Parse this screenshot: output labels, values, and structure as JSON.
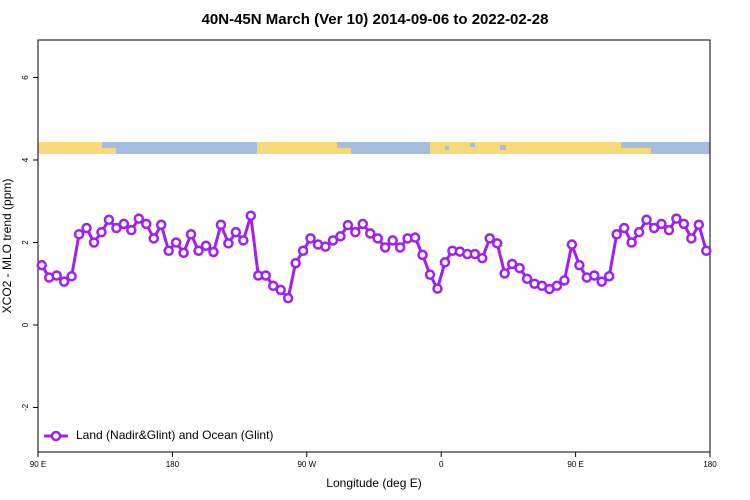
{
  "chart_data": {
    "type": "line",
    "title": "40N-45N March (Ver 10)   2014-09-06 to 2022-02-28",
    "x_label": "Longitude (deg E)",
    "y_label": "XCO2 - MLO trend (ppm)",
    "xlim": [
      90,
      540
    ],
    "xticks": [
      {
        "value": 90,
        "label": "90 E"
      },
      {
        "value": 180,
        "label": "180"
      },
      {
        "value": 270,
        "label": "90 W"
      },
      {
        "value": 360,
        "label": "0"
      },
      {
        "value": 450,
        "label": "90 E"
      },
      {
        "value": 540,
        "label": "180"
      }
    ],
    "ylim": [
      -3.08,
      6.91
    ],
    "yticks": [
      -2,
      0,
      2,
      4,
      6
    ],
    "legend": "bottom-left",
    "x": [
      92.5,
      97.5,
      102.5,
      107.5,
      112.5,
      117.5,
      122.5,
      127.5,
      132.5,
      137.5,
      142.5,
      147.5,
      152.5,
      157.5,
      162.5,
      167.5,
      172.5,
      177.5,
      182.5,
      187.5,
      192.5,
      197.5,
      202.5,
      207.5,
      212.5,
      217.5,
      222.5,
      227.5,
      232.5,
      237.5,
      242.5,
      247.5,
      252.5,
      257.5,
      262.5,
      267.5,
      272.5,
      277.5,
      282.5,
      287.5,
      292.5,
      297.5,
      302.5,
      307.5,
      312.5,
      317.5,
      322.5,
      327.5,
      332.5,
      337.5,
      342.5,
      347.5,
      352.5,
      357.5,
      362.5,
      367.5,
      372.5,
      377.5,
      382.5,
      387.5,
      392.5,
      397.5,
      402.5,
      407.5,
      412.5,
      417.5,
      422.5,
      427.5,
      432.5,
      437.5,
      442.5,
      447.5,
      452.5,
      457.5,
      462.5,
      467.5,
      472.5,
      477.5,
      482.5,
      487.5,
      492.5,
      497.5,
      502.5,
      507.5,
      512.5,
      517.5,
      522.5,
      527.5,
      532.5,
      537.5
    ],
    "series": [
      {
        "name": "Land (Nadir&Glint) and Ocean (Glint)",
        "color": "#a020f0",
        "values": [
          1.45,
          1.15,
          1.2,
          1.05,
          1.18,
          2.2,
          2.35,
          2.0,
          2.25,
          2.55,
          2.35,
          2.45,
          2.3,
          2.58,
          2.45,
          2.1,
          2.43,
          1.8,
          2.0,
          1.75,
          2.2,
          1.8,
          1.92,
          1.77,
          2.43,
          1.98,
          2.25,
          2.05,
          2.65,
          1.2,
          1.2,
          0.95,
          0.85,
          0.65,
          1.5,
          1.8,
          2.1,
          1.95,
          1.9,
          2.05,
          2.15,
          2.42,
          2.25,
          2.45,
          2.22,
          2.1,
          1.88,
          2.05,
          1.88,
          2.1,
          2.12,
          1.7,
          1.22,
          0.88,
          1.52,
          1.8,
          1.78,
          1.72,
          1.72,
          1.62,
          2.1,
          1.98,
          1.25,
          1.48,
          1.38,
          1.12,
          1.0,
          0.95,
          0.87,
          0.95,
          1.08,
          1.95,
          1.45,
          1.15,
          1.2,
          1.05,
          1.18,
          2.2,
          2.35,
          2.0,
          2.25,
          2.55,
          2.35,
          2.45,
          2.3,
          2.58,
          2.45,
          2.1,
          2.43,
          1.8
        ]
      }
    ]
  }
}
